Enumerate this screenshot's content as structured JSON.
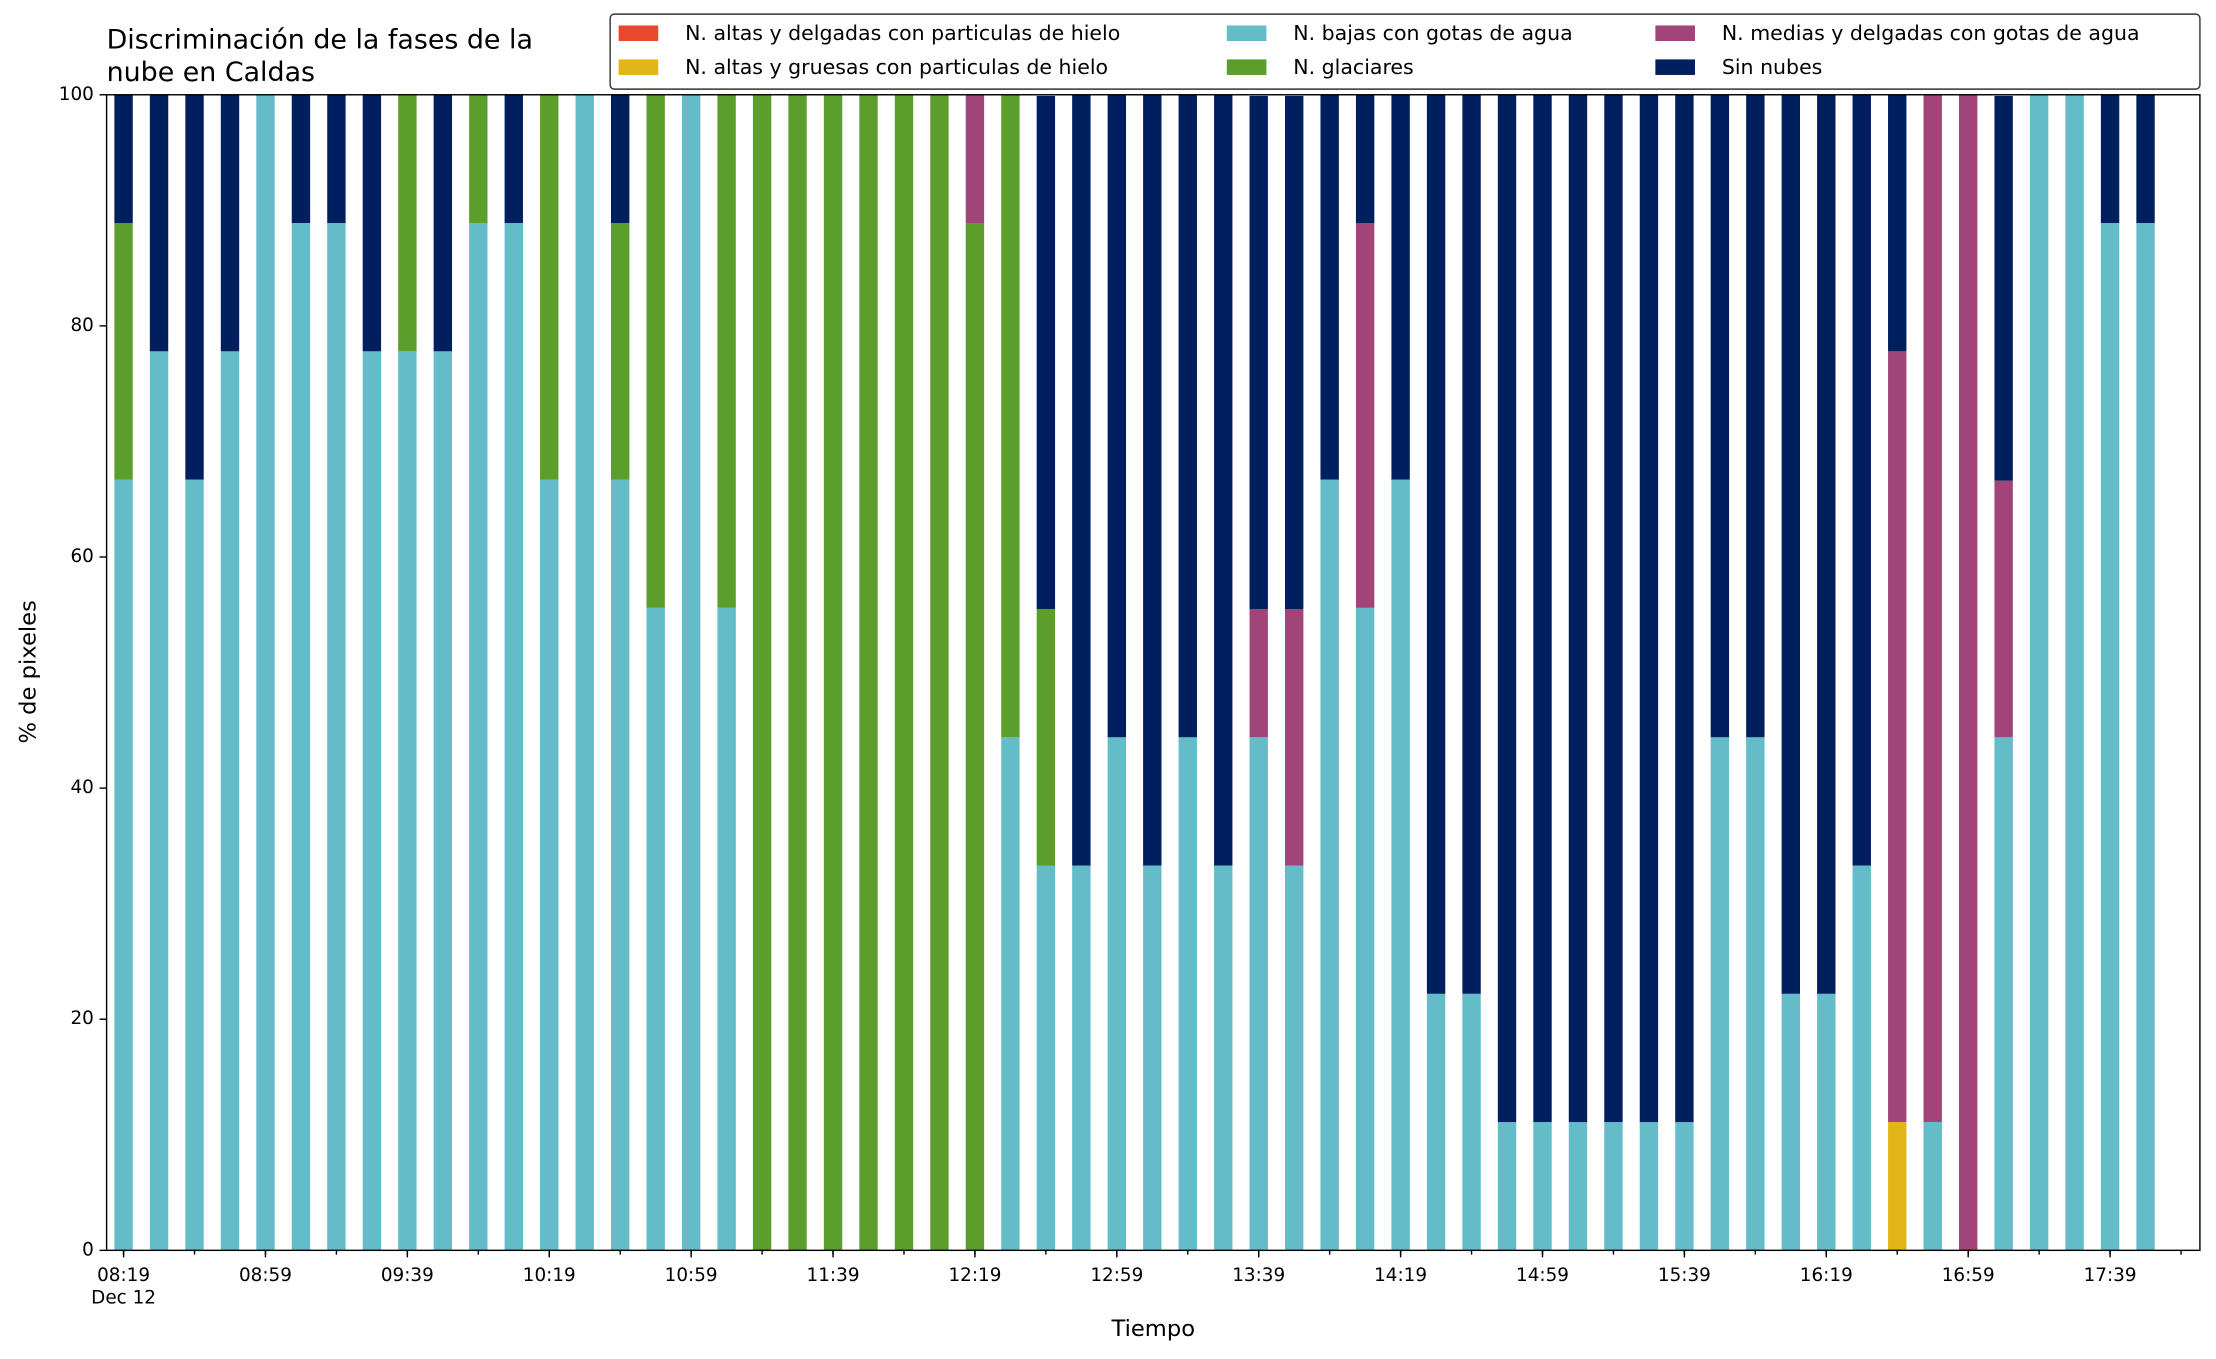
{
  "chart_data": {
    "type": "stacked_bar",
    "title": [
      "Discriminación de la fases de la",
      "nube en Caldas"
    ],
    "xlabel": "Tiempo",
    "ylabel": "% de pixeles",
    "x_sublabel": "Dec 12",
    "categories": [
      "08:19",
      null,
      null,
      null,
      "08:59",
      null,
      null,
      null,
      "09:39",
      null,
      null,
      null,
      "10:19",
      null,
      null,
      null,
      "10:59",
      null,
      null,
      null,
      "11:39",
      null,
      null,
      null,
      "12:19",
      null,
      null,
      null,
      "12:59",
      null,
      null,
      null,
      "13:39",
      null,
      null,
      null,
      "14:19",
      null,
      null,
      null,
      "14:59",
      null,
      null,
      null,
      "15:39",
      null,
      null,
      null,
      "16:19",
      null,
      null,
      null,
      "16:59",
      null,
      null,
      null,
      "17:39",
      null
    ],
    "ylim": [
      0,
      100
    ],
    "yticks": [
      0,
      20,
      40,
      60,
      80,
      100
    ],
    "grid": false,
    "series": [
      {
        "name": "N. altas y delgadas con particulas de hielo",
        "color": "#e8482c",
        "values": [
          0,
          0,
          0,
          0,
          0,
          0,
          0,
          0,
          0,
          0,
          0,
          0,
          0,
          0,
          0,
          0,
          0,
          0,
          0,
          0,
          0,
          0,
          0,
          0,
          0,
          0,
          0,
          0,
          0,
          0,
          0,
          0,
          0,
          0,
          0,
          0,
          0,
          0,
          0,
          0,
          0,
          0,
          0,
          0,
          0,
          0,
          0,
          0,
          0,
          0,
          0,
          0,
          0,
          0,
          0,
          0,
          0,
          0
        ]
      },
      {
        "name": "N. altas y gruesas con particulas de hielo",
        "color": "#e2b617",
        "values": [
          0,
          0,
          0,
          0,
          0,
          0,
          0,
          0,
          0,
          0,
          0,
          0,
          0,
          0,
          0,
          0,
          0,
          0,
          0,
          0,
          0,
          0,
          0,
          0,
          0,
          0,
          0,
          0,
          0,
          0,
          0,
          0,
          0,
          0,
          0,
          0,
          0,
          0,
          0,
          0,
          0,
          0,
          0,
          0,
          0,
          0,
          0,
          0,
          0,
          0,
          11.1,
          0,
          0,
          0,
          0,
          0,
          0,
          0
        ]
      },
      {
        "name": "N. bajas con gotas de agua",
        "color": "#63bcc8",
        "values": [
          66.7,
          77.8,
          66.7,
          77.8,
          100,
          88.9,
          88.9,
          77.8,
          77.8,
          77.8,
          88.9,
          88.9,
          66.7,
          100,
          66.7,
          55.6,
          100,
          55.6,
          0,
          0,
          0,
          0,
          0,
          0,
          0,
          44.4,
          33.3,
          33.3,
          44.4,
          33.3,
          44.4,
          33.3,
          44.4,
          33.3,
          66.7,
          55.6,
          66.7,
          22.2,
          22.2,
          11.1,
          11.1,
          11.1,
          11.1,
          11.1,
          11.1,
          44.4,
          44.4,
          22.2,
          22.2,
          33.3,
          0,
          11.1,
          0,
          44.4,
          100,
          100,
          88.9,
          88.9
        ]
      },
      {
        "name": "N. glaciares",
        "color": "#5c9e2b",
        "values": [
          22.2,
          0,
          0,
          0,
          0,
          0,
          0,
          0,
          22.2,
          0,
          11.1,
          0,
          33.3,
          0,
          22.2,
          44.4,
          0,
          44.4,
          100,
          100,
          100,
          100,
          100,
          100,
          88.9,
          55.6,
          22.2,
          0,
          0,
          0,
          0,
          0,
          0,
          0,
          0,
          0,
          0,
          0,
          0,
          0,
          0,
          0,
          0,
          0,
          0,
          0,
          0,
          0,
          0,
          0,
          0,
          0,
          0,
          0,
          0,
          0,
          0,
          0
        ]
      },
      {
        "name": "N. medias y delgadas con gotas de agua",
        "color": "#a0447a",
        "values": [
          0,
          0,
          0,
          0,
          0,
          0,
          0,
          0,
          0,
          0,
          0,
          0,
          0,
          0,
          0,
          0,
          0,
          0,
          0,
          0,
          0,
          0,
          0,
          0,
          11.1,
          0,
          0,
          0,
          0,
          0,
          0,
          0,
          11.1,
          22.2,
          0,
          33.3,
          0,
          0,
          0,
          0,
          0,
          0,
          0,
          0,
          0,
          0,
          0,
          0,
          0,
          0,
          66.7,
          88.9,
          100,
          22.2,
          0,
          0,
          0,
          0
        ]
      },
      {
        "name": "Sin nubes",
        "color": "#001f5f",
        "values": [
          11.1,
          22.2,
          33.3,
          22.2,
          0,
          11.1,
          11.1,
          22.2,
          0,
          22.2,
          0,
          11.1,
          0,
          0,
          11.1,
          0,
          0,
          0,
          0,
          0,
          0,
          0,
          0,
          0,
          0,
          0,
          44.4,
          66.7,
          55.6,
          66.7,
          55.6,
          66.7,
          44.4,
          44.4,
          33.3,
          11.1,
          33.3,
          77.8,
          77.8,
          88.9,
          88.9,
          88.9,
          88.9,
          88.9,
          88.9,
          55.6,
          55.6,
          77.8,
          77.8,
          66.7,
          22.2,
          0,
          0,
          33.3,
          0,
          0,
          11.1,
          11.1
        ]
      }
    ]
  }
}
